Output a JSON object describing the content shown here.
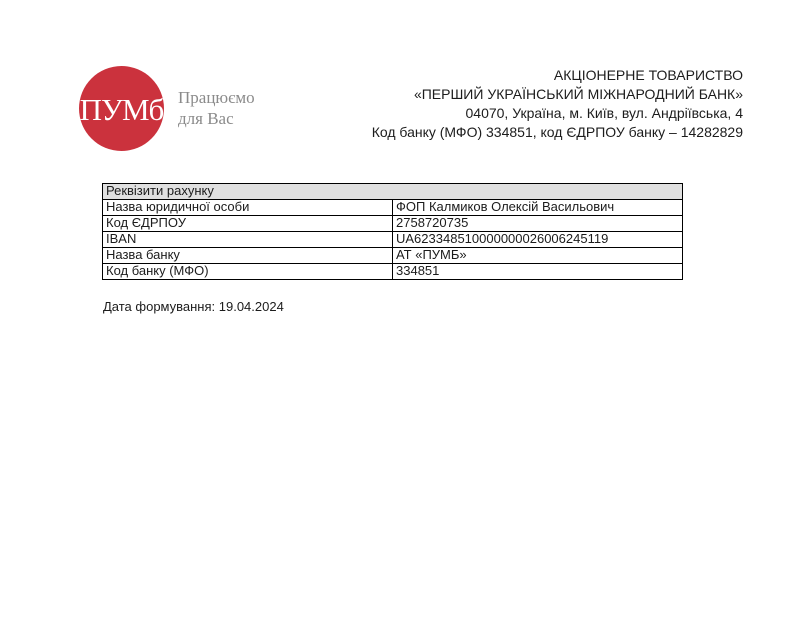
{
  "logo": {
    "monogram": "ПУМб",
    "tagline_line1": "Працюємо",
    "tagline_line2": "для Вас",
    "brand_color": "#cb323d",
    "tagline_color": "#8b8b8b"
  },
  "header": {
    "lines": [
      "АКЦІОНЕРНЕ ТОВАРИСТВО",
      "«ПЕРШИЙ УКРАЇНСЬКИЙ МІЖНАРОДНИЙ БАНК»",
      "04070, Україна, м. Київ, вул. Андріївська, 4",
      "Код банку (МФО) 334851, код ЄДРПОУ банку – 14282829"
    ]
  },
  "table": {
    "title": "Реквізити рахунку",
    "title_bg": "#e0e0e0",
    "rows": [
      {
        "label": "Назва юридичної особи",
        "value": "ФОП Калмиков Олексій Васильович"
      },
      {
        "label": "Код ЄДРПОУ",
        "value": "2758720735"
      },
      {
        "label": "IBAN",
        "value": "UA623348510000000026006245119"
      },
      {
        "label": "Назва банку",
        "value": "АТ «ПУМБ»"
      },
      {
        "label": "Код банку (МФО)",
        "value": "334851"
      }
    ]
  },
  "footer": {
    "generated_date": "Дата формування: 19.04.2024"
  }
}
